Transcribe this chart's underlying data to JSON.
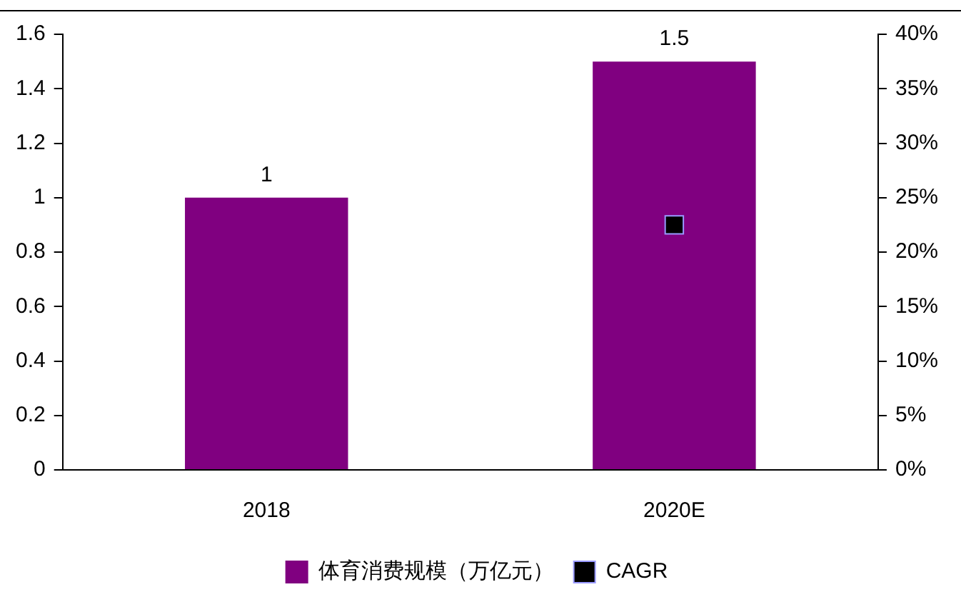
{
  "chart_data": {
    "type": "bar",
    "categories": [
      "2018",
      "2020E"
    ],
    "series": [
      {
        "name": "体育消费规模（万亿元）",
        "color": "#800080",
        "values": [
          1,
          1.5
        ],
        "value_labels": [
          "1",
          "1.5"
        ]
      },
      {
        "name": "CAGR",
        "type": "line",
        "axis": "y2",
        "color": "#000000",
        "values": [
          null,
          22.5
        ],
        "marker": "square"
      }
    ],
    "ylim": [
      0,
      1.6
    ],
    "yticks": [
      0,
      0.2,
      0.4,
      0.6,
      0.8,
      1,
      1.2,
      1.4,
      1.6
    ],
    "y2lim": [
      0,
      40
    ],
    "y2ticks": [
      {
        "value": 0,
        "label": "0%"
      },
      {
        "value": 5,
        "label": "5%"
      },
      {
        "value": 10,
        "label": "10%"
      },
      {
        "value": 15,
        "label": "15%"
      },
      {
        "value": 20,
        "label": "20%"
      },
      {
        "value": 25,
        "label": "25%"
      },
      {
        "value": 30,
        "label": "30%"
      },
      {
        "value": 35,
        "label": "35%"
      },
      {
        "value": 40,
        "label": "40%"
      }
    ],
    "grid": false,
    "legend": "bottom"
  }
}
